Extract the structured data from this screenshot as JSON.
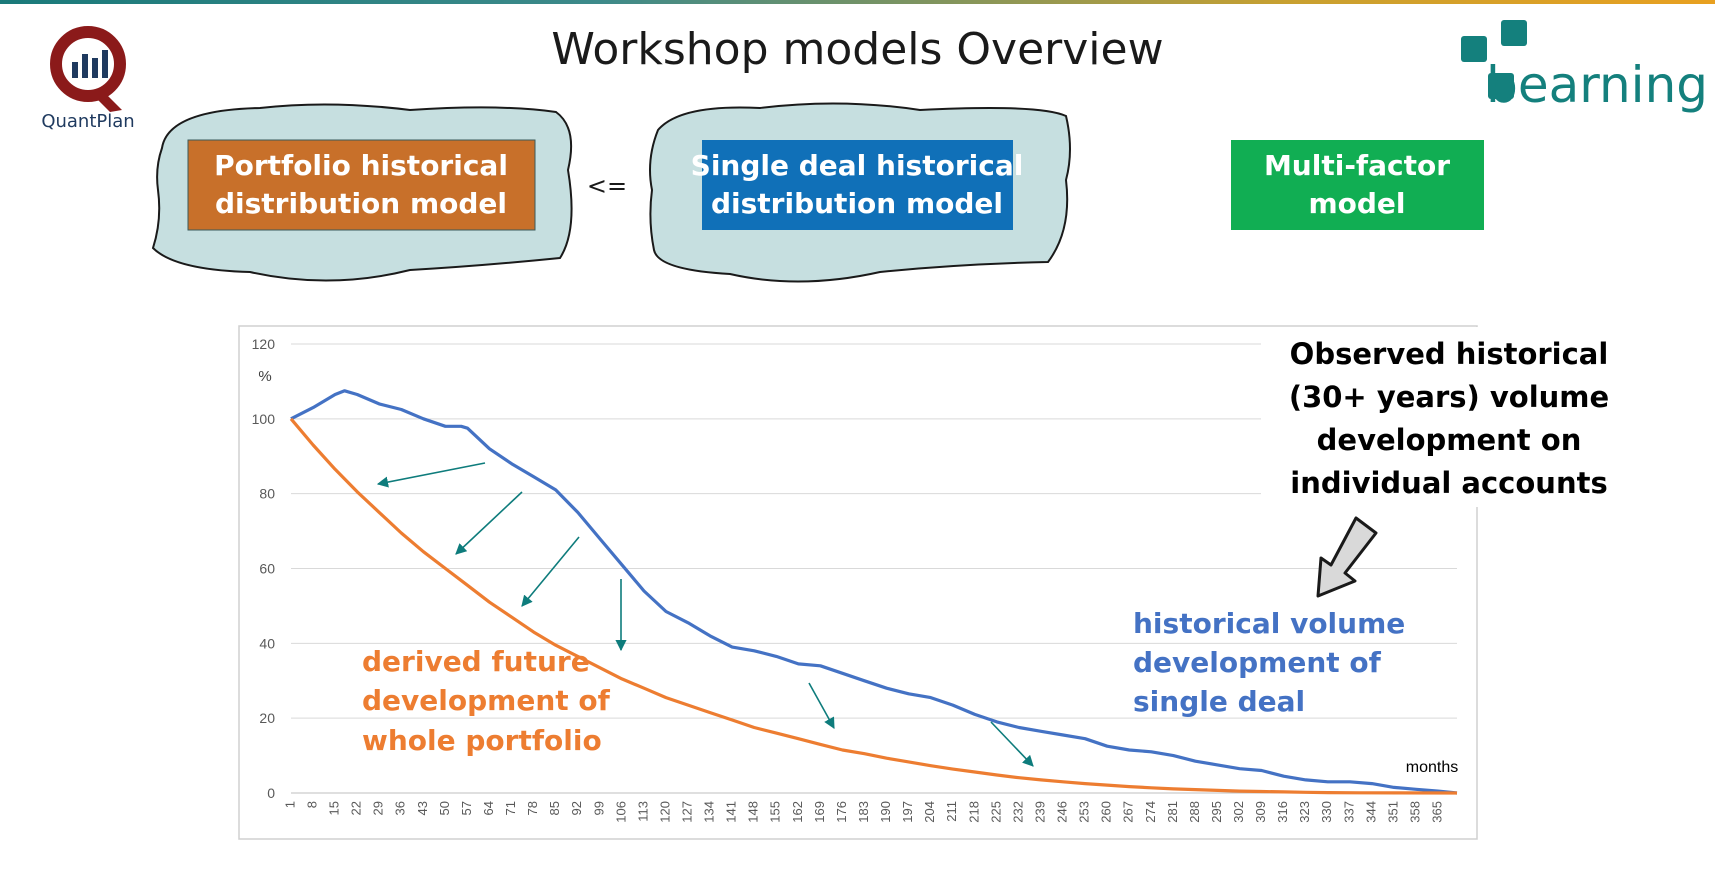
{
  "title": "Workshop models Overview",
  "logos": {
    "left": {
      "name": "QuantPlan",
      "accent": "#8b1a1a",
      "text_color": "#1f3a5f"
    },
    "right": {
      "name": "bearning",
      "accent": "#14807d"
    }
  },
  "models": {
    "portfolio": {
      "text": [
        "Portfolio historical",
        "distribution model"
      ],
      "fill": "#c8702a"
    },
    "comparator": "<=",
    "single_deal": {
      "text": [
        "Single deal historical",
        "distribution model"
      ],
      "fill": "#1070b8"
    },
    "multi_factor": {
      "text": [
        "Multi-factor",
        "model"
      ],
      "fill": "#11ae53"
    }
  },
  "chart_data": {
    "type": "line",
    "y_unit": "%",
    "x_axis_label": "months",
    "ylim": [
      0,
      120
    ],
    "yticks": [
      0,
      20,
      40,
      60,
      80,
      100,
      120
    ],
    "xlim": [
      1,
      371
    ],
    "xticks": [
      1,
      8,
      15,
      22,
      29,
      36,
      43,
      50,
      57,
      64,
      71,
      78,
      85,
      92,
      99,
      106,
      113,
      120,
      127,
      134,
      141,
      148,
      155,
      162,
      169,
      176,
      183,
      190,
      197,
      204,
      211,
      218,
      225,
      232,
      239,
      246,
      253,
      260,
      267,
      274,
      281,
      288,
      295,
      302,
      309,
      316,
      323,
      330,
      337,
      344,
      351,
      358,
      365
    ],
    "grid": true,
    "series": [
      {
        "color": "#4472c4",
        "points": [
          [
            1,
            100
          ],
          [
            8,
            103
          ],
          [
            15,
            106.5
          ],
          [
            18,
            107.5
          ],
          [
            22,
            106.5
          ],
          [
            29,
            104
          ],
          [
            36,
            102.5
          ],
          [
            43,
            100
          ],
          [
            50,
            98
          ],
          [
            55,
            98
          ],
          [
            57,
            97.5
          ],
          [
            64,
            92
          ],
          [
            71,
            88
          ],
          [
            78,
            84.5
          ],
          [
            85,
            81
          ],
          [
            92,
            75
          ],
          [
            99,
            68
          ],
          [
            106,
            61
          ],
          [
            113,
            54
          ],
          [
            120,
            48.5
          ],
          [
            127,
            45.5
          ],
          [
            134,
            42
          ],
          [
            141,
            39
          ],
          [
            148,
            38
          ],
          [
            155,
            36.5
          ],
          [
            162,
            34.5
          ],
          [
            169,
            34
          ],
          [
            176,
            32
          ],
          [
            183,
            30
          ],
          [
            190,
            28
          ],
          [
            197,
            26.5
          ],
          [
            204,
            25.5
          ],
          [
            211,
            23.5
          ],
          [
            218,
            21
          ],
          [
            225,
            19
          ],
          [
            232,
            17.5
          ],
          [
            239,
            16.5
          ],
          [
            246,
            15.5
          ],
          [
            253,
            14.5
          ],
          [
            260,
            12.5
          ],
          [
            267,
            11.5
          ],
          [
            274,
            11
          ],
          [
            281,
            10
          ],
          [
            288,
            8.5
          ],
          [
            295,
            7.5
          ],
          [
            302,
            6.5
          ],
          [
            309,
            6
          ],
          [
            316,
            4.5
          ],
          [
            323,
            3.5
          ],
          [
            330,
            3
          ],
          [
            337,
            3
          ],
          [
            344,
            2.5
          ],
          [
            351,
            1.5
          ],
          [
            358,
            1
          ],
          [
            365,
            0.5
          ],
          [
            371,
            0
          ]
        ]
      },
      {
        "color": "#ed7d31",
        "points": [
          [
            1,
            100
          ],
          [
            8,
            93
          ],
          [
            15,
            86.5
          ],
          [
            22,
            80.5
          ],
          [
            29,
            75
          ],
          [
            36,
            69.5
          ],
          [
            43,
            64.5
          ],
          [
            50,
            60
          ],
          [
            57,
            55.5
          ],
          [
            64,
            51
          ],
          [
            71,
            47
          ],
          [
            78,
            43
          ],
          [
            85,
            39.5
          ],
          [
            92,
            36.5
          ],
          [
            99,
            33.5
          ],
          [
            106,
            30.5
          ],
          [
            113,
            28
          ],
          [
            120,
            25.5
          ],
          [
            127,
            23.5
          ],
          [
            134,
            21.5
          ],
          [
            141,
            19.5
          ],
          [
            148,
            17.5
          ],
          [
            155,
            16
          ],
          [
            162,
            14.5
          ],
          [
            169,
            13
          ],
          [
            176,
            11.5
          ],
          [
            183,
            10.5
          ],
          [
            190,
            9.3
          ],
          [
            197,
            8.3
          ],
          [
            204,
            7.3
          ],
          [
            211,
            6.4
          ],
          [
            218,
            5.6
          ],
          [
            225,
            4.8
          ],
          [
            232,
            4.1
          ],
          [
            239,
            3.5
          ],
          [
            246,
            3
          ],
          [
            253,
            2.5
          ],
          [
            260,
            2.1
          ],
          [
            267,
            1.7
          ],
          [
            274,
            1.4
          ],
          [
            281,
            1.1
          ],
          [
            288,
            0.9
          ],
          [
            295,
            0.7
          ],
          [
            302,
            0.5
          ],
          [
            309,
            0.4
          ],
          [
            316,
            0.3
          ],
          [
            323,
            0.2
          ],
          [
            330,
            0.1
          ],
          [
            340,
            0.05
          ],
          [
            371,
            0
          ]
        ]
      }
    ],
    "annotations": {
      "orange": {
        "text": [
          "derived future",
          "development of",
          "whole portfolio"
        ],
        "color": "#ed7d31"
      },
      "blue": {
        "text": [
          "historical volume",
          "development of",
          "single deal"
        ],
        "color": "#4472c4"
      },
      "observed": {
        "text": [
          "Observed historical",
          "(30+ years) volume",
          "development on",
          "individual accounts"
        ],
        "color": "#000000"
      },
      "arrow_color": "#0e7c7c"
    }
  }
}
